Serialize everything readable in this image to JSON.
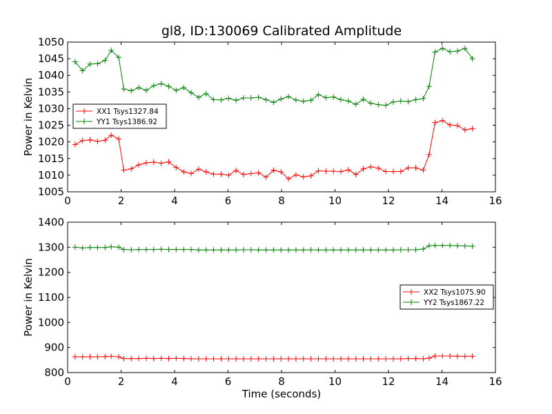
{
  "chart_data": [
    {
      "type": "line",
      "title": "gl8, ID:130069 Calibrated Amplitude",
      "xlabel": "",
      "ylabel": "Power in Kelvin",
      "xlim": [
        0,
        16
      ],
      "ylim": [
        1005,
        1050
      ],
      "xticks": [
        "0",
        "2",
        "4",
        "6",
        "8",
        "10",
        "12",
        "14",
        "16"
      ],
      "yticks": [
        "1005",
        "1010",
        "1015",
        "1020",
        "1025",
        "1030",
        "1035",
        "1040",
        "1045",
        "1050"
      ],
      "legend_position": "center-left",
      "grid": false,
      "x": [
        0.28,
        0.56,
        0.84,
        1.12,
        1.4,
        1.63,
        1.91,
        2.1,
        2.38,
        2.66,
        2.94,
        3.22,
        3.5,
        3.78,
        4.06,
        4.34,
        4.62,
        4.9,
        5.18,
        5.46,
        5.74,
        6.02,
        6.3,
        6.58,
        6.86,
        7.14,
        7.42,
        7.7,
        7.98,
        8.26,
        8.54,
        8.82,
        9.1,
        9.38,
        9.66,
        9.94,
        10.22,
        10.5,
        10.78,
        11.06,
        11.34,
        11.62,
        11.9,
        12.18,
        12.46,
        12.74,
        13.02,
        13.3,
        13.52,
        13.74,
        14.02,
        14.3,
        14.58,
        14.86,
        15.14
      ],
      "series": [
        {
          "name": "XX1 Tsys1327.84",
          "color": "#ff0000",
          "values": [
            1019.2,
            1020.4,
            1020.6,
            1020.2,
            1020.5,
            1022.0,
            1020.9,
            1011.5,
            1011.9,
            1013.1,
            1013.7,
            1013.9,
            1013.6,
            1014.0,
            1012.3,
            1011.0,
            1010.5,
            1011.8,
            1011.0,
            1010.3,
            1010.3,
            1010.0,
            1011.4,
            1010.2,
            1010.5,
            1010.7,
            1009.4,
            1011.5,
            1011.0,
            1008.9,
            1010.1,
            1009.5,
            1009.8,
            1011.3,
            1011.2,
            1011.2,
            1011.1,
            1011.6,
            1010.2,
            1011.9,
            1012.5,
            1012.1,
            1011.1,
            1011.1,
            1011.1,
            1012.2,
            1012.2,
            1011.5,
            1016.2,
            1025.8,
            1026.4,
            1025.1,
            1024.9,
            1023.6,
            1024.0
          ]
        },
        {
          "name": "YY1 Tsys1386.92",
          "color": "#008000",
          "values": [
            1044.1,
            1041.4,
            1043.4,
            1043.5,
            1044.5,
            1047.5,
            1045.4,
            1035.9,
            1035.4,
            1036.3,
            1035.5,
            1036.9,
            1037.5,
            1036.7,
            1035.5,
            1036.3,
            1034.8,
            1033.4,
            1034.5,
            1032.7,
            1032.6,
            1033.1,
            1032.5,
            1033.2,
            1033.2,
            1033.4,
            1032.7,
            1031.9,
            1032.9,
            1033.6,
            1032.6,
            1032.2,
            1032.5,
            1034.2,
            1033.3,
            1033.5,
            1032.7,
            1032.3,
            1031.3,
            1032.8,
            1031.6,
            1031.2,
            1031.0,
            1032.0,
            1032.3,
            1032.1,
            1032.7,
            1033.0,
            1036.7,
            1047.0,
            1048.1,
            1047.1,
            1047.3,
            1048.1,
            1045.0
          ]
        }
      ]
    },
    {
      "type": "line",
      "title": "",
      "xlabel": "Time (seconds)",
      "ylabel": "Power in Kelvin",
      "xlim": [
        0,
        16
      ],
      "ylim": [
        800,
        1400
      ],
      "xticks": [
        "0",
        "2",
        "4",
        "6",
        "8",
        "10",
        "12",
        "14",
        "16"
      ],
      "yticks": [
        "800",
        "900",
        "1000",
        "1100",
        "1200",
        "1300",
        "1400"
      ],
      "legend_position": "center-right",
      "grid": false,
      "x": [
        0.28,
        0.56,
        0.84,
        1.12,
        1.4,
        1.63,
        1.91,
        2.1,
        2.38,
        2.66,
        2.94,
        3.22,
        3.5,
        3.78,
        4.06,
        4.34,
        4.62,
        4.9,
        5.18,
        5.46,
        5.74,
        6.02,
        6.3,
        6.58,
        6.86,
        7.14,
        7.42,
        7.7,
        7.98,
        8.26,
        8.54,
        8.82,
        9.1,
        9.38,
        9.66,
        9.94,
        10.22,
        10.5,
        10.78,
        11.06,
        11.34,
        11.62,
        11.9,
        12.18,
        12.46,
        12.74,
        13.02,
        13.3,
        13.52,
        13.74,
        14.02,
        14.3,
        14.58,
        14.86,
        15.14
      ],
      "series": [
        {
          "name": "XX2 Tsys1075.90",
          "color": "#ff0000",
          "values": [
            863,
            863,
            863,
            863,
            864,
            865,
            863,
            856,
            856,
            856,
            857,
            856,
            857,
            856,
            857,
            856,
            855,
            855,
            855,
            855,
            855,
            855,
            855,
            855,
            855,
            855,
            855,
            855,
            855,
            855,
            855,
            855,
            855,
            855,
            855,
            855,
            855,
            855,
            855,
            855,
            855,
            855,
            855,
            855,
            855,
            856,
            856,
            855,
            858,
            866,
            866,
            866,
            865,
            865,
            865
          ]
        },
        {
          "name": "YY2 Tsys1867.22",
          "color": "#008000",
          "values": [
            1300,
            1297,
            1299,
            1299,
            1299,
            1302,
            1300,
            1291,
            1290,
            1291,
            1291,
            1291,
            1292,
            1291,
            1291,
            1291,
            1291,
            1289,
            1289,
            1289,
            1289,
            1289,
            1289,
            1290,
            1290,
            1289,
            1289,
            1289,
            1289,
            1289,
            1289,
            1289,
            1290,
            1289,
            1289,
            1289,
            1289,
            1289,
            1289,
            1289,
            1289,
            1289,
            1289,
            1289,
            1290,
            1290,
            1290,
            1293,
            1306,
            1307,
            1307,
            1307,
            1306,
            1305,
            1304
          ]
        }
      ]
    }
  ]
}
